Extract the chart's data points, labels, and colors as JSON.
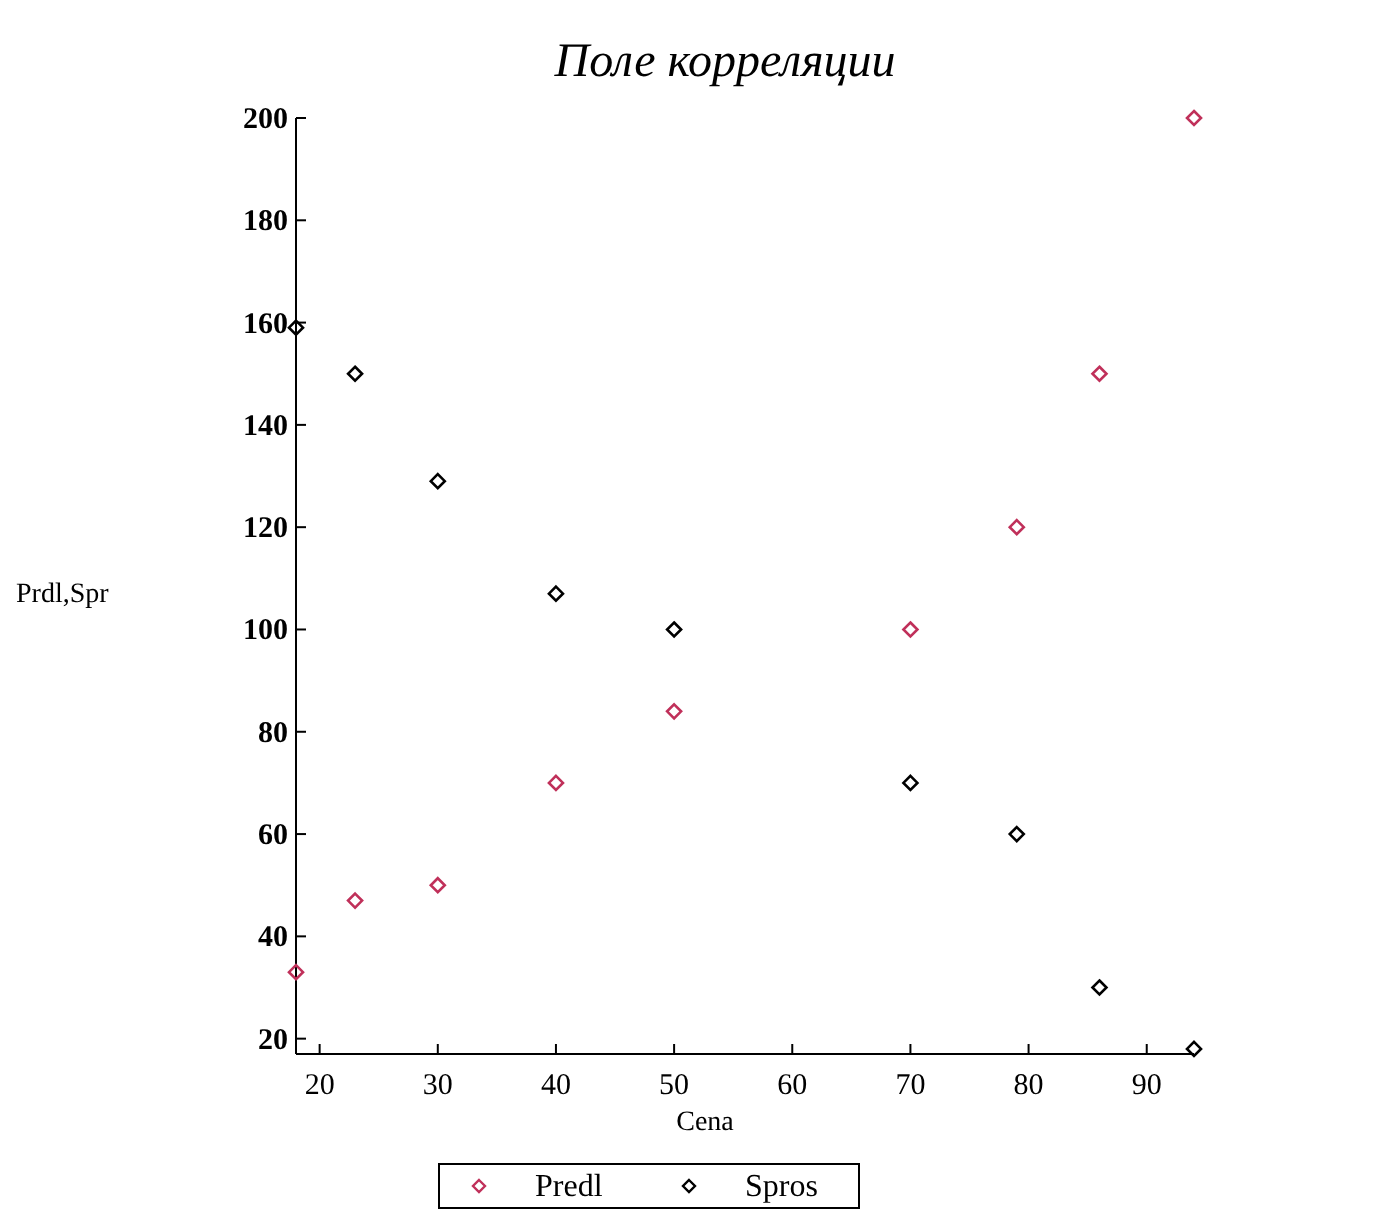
{
  "chart_data": {
    "type": "scatter",
    "title": "Поле корреляции",
    "xlabel": "Cena",
    "ylabel": "Prdl,Spr",
    "xlim": [
      18,
      94
    ],
    "ylim": [
      17,
      200
    ],
    "xticks": [
      20,
      30,
      40,
      50,
      60,
      70,
      80,
      90
    ],
    "yticks": [
      20,
      40,
      60,
      80,
      100,
      120,
      140,
      160,
      180,
      200
    ],
    "marker": "diamond",
    "legend": "bottom",
    "grid": false,
    "series": [
      {
        "name": "Predl",
        "color": "#c0305a",
        "x": [
          18,
          23,
          30,
          40,
          50,
          70,
          79,
          86,
          94
        ],
        "values": [
          33,
          47,
          50,
          70,
          84,
          100,
          120,
          150,
          200
        ]
      },
      {
        "name": "Spros",
        "color": "#000000",
        "x": [
          18,
          23,
          30,
          40,
          50,
          70,
          79,
          86,
          94
        ],
        "values": [
          159,
          150,
          129,
          107,
          100,
          70,
          60,
          30,
          18
        ]
      }
    ]
  }
}
